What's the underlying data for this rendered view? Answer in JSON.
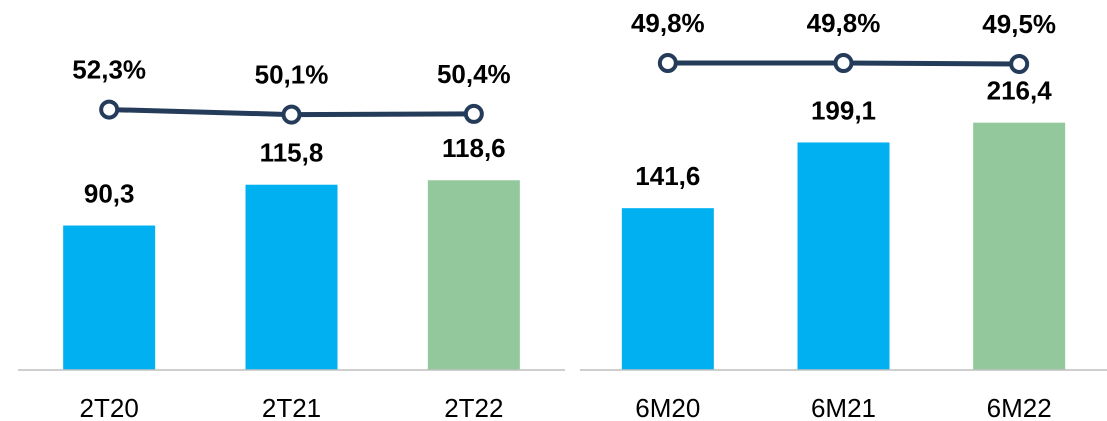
{
  "chart_data": [
    {
      "type": "combo",
      "categories": [
        "2T20",
        "2T21",
        "2T22"
      ],
      "ylim": [
        0,
        225
      ],
      "y2lim": [
        -62,
        96
      ],
      "series": [
        {
          "type": "bar",
          "colors": [
            "#00b0f0",
            "#00b0f0",
            "#92c89c"
          ],
          "values": [
            90.3,
            115.8,
            118.6
          ],
          "value_labels": [
            "90,3",
            "115,8",
            "118,6"
          ]
        },
        {
          "type": "line",
          "axis": "y2",
          "color": "#243b5a",
          "values": [
            52.3,
            50.1,
            50.4
          ],
          "value_labels": [
            "52,3%",
            "50,1%",
            "50,4%"
          ]
        }
      ]
    },
    {
      "type": "combo",
      "categories": [
        "6M20",
        "6M21",
        "6M22"
      ],
      "ylim": [
        0,
        315
      ],
      "y2lim": [
        -44,
        66
      ],
      "series": [
        {
          "type": "bar",
          "colors": [
            "#00b0f0",
            "#00b0f0",
            "#92c89c"
          ],
          "values": [
            141.6,
            199.1,
            216.4
          ],
          "value_labels": [
            "141,6",
            "199,1",
            "216,4"
          ]
        },
        {
          "type": "line",
          "axis": "y2",
          "color": "#243b5a",
          "values": [
            49.8,
            49.8,
            49.5
          ],
          "value_labels": [
            "49,8%",
            "49,8%",
            "49,5%"
          ]
        }
      ]
    }
  ]
}
